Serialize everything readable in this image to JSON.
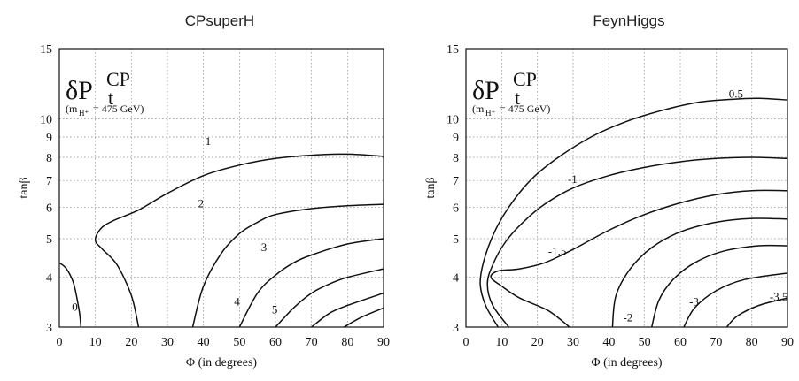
{
  "chart_data": [
    {
      "type": "line",
      "title": "CPsuperH",
      "xlabel": "Φ (in degrees)",
      "ylabel": "tanβ",
      "xlim": [
        0,
        90
      ],
      "ylim": [
        3,
        15
      ],
      "yscale": "log",
      "xticks": [
        0,
        10,
        20,
        30,
        40,
        50,
        60,
        70,
        80,
        90
      ],
      "yticks": [
        3,
        4,
        5,
        6,
        7,
        8,
        9,
        10,
        15
      ],
      "grid": true,
      "annotation": {
        "symbol": "δP",
        "sup": "CP",
        "sub": "t",
        "note_pre": "(m",
        "note_sub": "H⁺",
        "note_post": " = 475 GeV)"
      },
      "series": [
        {
          "name": "0",
          "points": [
            [
              0,
              4.35
            ],
            [
              2,
              4.2
            ],
            [
              4,
              3.85
            ],
            [
              5.5,
              3.3
            ],
            [
              6,
              3.0
            ]
          ]
        },
        {
          "name": "1",
          "points": [
            [
              22,
              3.0
            ],
            [
              20,
              3.6
            ],
            [
              16,
              4.3
            ],
            [
              12,
              4.7
            ],
            [
              10,
              4.95
            ],
            [
              11.5,
              5.3
            ],
            [
              15,
              5.55
            ],
            [
              22,
              5.9
            ],
            [
              30,
              6.5
            ],
            [
              40,
              7.2
            ],
            [
              50,
              7.65
            ],
            [
              60,
              7.95
            ],
            [
              70,
              8.1
            ],
            [
              80,
              8.15
            ],
            [
              90,
              8.05
            ]
          ]
        },
        {
          "name": "2",
          "points": [
            [
              37,
              3.0
            ],
            [
              40,
              3.8
            ],
            [
              45,
              4.6
            ],
            [
              50,
              5.15
            ],
            [
              55,
              5.5
            ],
            [
              60,
              5.75
            ],
            [
              70,
              5.95
            ],
            [
              80,
              6.05
            ],
            [
              90,
              6.1
            ]
          ]
        },
        {
          "name": "3",
          "points": [
            [
              50,
              3.0
            ],
            [
              55,
              3.65
            ],
            [
              60,
              4.05
            ],
            [
              65,
              4.35
            ],
            [
              70,
              4.55
            ],
            [
              80,
              4.85
            ],
            [
              90,
              5.0
            ]
          ]
        },
        {
          "name": "4",
          "points": [
            [
              60,
              3.0
            ],
            [
              65,
              3.35
            ],
            [
              70,
              3.65
            ],
            [
              75,
              3.85
            ],
            [
              80,
              4.0
            ],
            [
              90,
              4.2
            ]
          ]
        },
        {
          "name": "5",
          "points": [
            [
              70,
              3.0
            ],
            [
              75,
              3.25
            ],
            [
              80,
              3.4
            ],
            [
              90,
              3.65
            ]
          ]
        },
        {
          "name": "",
          "points": [
            [
              79,
              3.0
            ],
            [
              84,
              3.18
            ],
            [
              90,
              3.35
            ]
          ]
        }
      ],
      "contour_labels": [
        {
          "text": "0",
          "x": 3.5,
          "y": 3.3
        },
        {
          "text": "1",
          "x": 40.5,
          "y": 8.6
        },
        {
          "text": "2",
          "x": 38.5,
          "y": 6.0
        },
        {
          "text": "3",
          "x": 56,
          "y": 4.65
        },
        {
          "text": "4",
          "x": 48.5,
          "y": 3.4
        },
        {
          "text": "5",
          "x": 59,
          "y": 3.25
        }
      ]
    },
    {
      "type": "line",
      "title": "FeynHiggs",
      "xlabel": "Φ (in degrees)",
      "ylabel": "tanβ",
      "xlim": [
        0,
        90
      ],
      "ylim": [
        3,
        15
      ],
      "yscale": "log",
      "xticks": [
        0,
        10,
        20,
        30,
        40,
        50,
        60,
        70,
        80,
        90
      ],
      "yticks": [
        3,
        4,
        5,
        6,
        7,
        8,
        9,
        10,
        15
      ],
      "grid": true,
      "annotation": {
        "symbol": "δP",
        "sup": "CP",
        "sub": "t",
        "note_pre": "(m",
        "note_sub": "H⁺",
        "note_post": " = 475 GeV)"
      },
      "series": [
        {
          "name": "-0.5",
          "points": [
            [
              9,
              3.0
            ],
            [
              5.5,
              3.4
            ],
            [
              4,
              3.85
            ],
            [
              5,
              4.4
            ],
            [
              8,
              5.2
            ],
            [
              12,
              6.0
            ],
            [
              18,
              7.0
            ],
            [
              25,
              7.9
            ],
            [
              35,
              9.0
            ],
            [
              45,
              9.85
            ],
            [
              55,
              10.5
            ],
            [
              65,
              11.0
            ],
            [
              75,
              11.2
            ],
            [
              82,
              11.25
            ],
            [
              90,
              11.15
            ]
          ]
        },
        {
          "name": "-1",
          "points": [
            [
              12,
              3.0
            ],
            [
              7.5,
              3.4
            ],
            [
              6,
              3.85
            ],
            [
              7.5,
              4.3
            ],
            [
              11,
              4.9
            ],
            [
              16,
              5.5
            ],
            [
              22,
              6.1
            ],
            [
              30,
              6.7
            ],
            [
              40,
              7.2
            ],
            [
              50,
              7.55
            ],
            [
              60,
              7.8
            ],
            [
              70,
              7.95
            ],
            [
              80,
              8.0
            ],
            [
              90,
              7.95
            ]
          ]
        },
        {
          "name": "-1.5",
          "points": [
            [
              29,
              3.0
            ],
            [
              23,
              3.3
            ],
            [
              15,
              3.55
            ],
            [
              10,
              3.8
            ],
            [
              7,
              4.0
            ],
            [
              9,
              4.15
            ],
            [
              15,
              4.2
            ],
            [
              22,
              4.35
            ],
            [
              30,
              4.7
            ],
            [
              40,
              5.25
            ],
            [
              50,
              5.75
            ],
            [
              60,
              6.15
            ],
            [
              70,
              6.45
            ],
            [
              80,
              6.6
            ],
            [
              90,
              6.6
            ]
          ]
        },
        {
          "name": "-2",
          "points": [
            [
              41,
              3.0
            ],
            [
              42,
              3.6
            ],
            [
              46,
              4.2
            ],
            [
              52,
              4.75
            ],
            [
              60,
              5.2
            ],
            [
              70,
              5.5
            ],
            [
              80,
              5.62
            ],
            [
              90,
              5.6
            ]
          ]
        },
        {
          "name": "",
          "points": [
            [
              52,
              3.0
            ],
            [
              54,
              3.5
            ],
            [
              58,
              3.95
            ],
            [
              64,
              4.35
            ],
            [
              72,
              4.65
            ],
            [
              82,
              4.8
            ],
            [
              90,
              4.8
            ]
          ]
        },
        {
          "name": "-3",
          "points": [
            [
              61,
              3.0
            ],
            [
              64,
              3.35
            ],
            [
              70,
              3.7
            ],
            [
              78,
              3.95
            ],
            [
              90,
              4.1
            ]
          ]
        },
        {
          "name": "-3.5",
          "points": [
            [
              73,
              3.0
            ],
            [
              76,
              3.2
            ],
            [
              82,
              3.4
            ],
            [
              90,
              3.55
            ]
          ]
        }
      ],
      "contour_labels": [
        {
          "text": "-0.5",
          "x": 72.5,
          "y": 11.3
        },
        {
          "text": "-1",
          "x": 28.5,
          "y": 6.9
        },
        {
          "text": "-1.5",
          "x": 23,
          "y": 4.55
        },
        {
          "text": "-2",
          "x": 44,
          "y": 3.1
        },
        {
          "text": "-3",
          "x": 62.5,
          "y": 3.4
        },
        {
          "text": "-3.5",
          "x": 85,
          "y": 3.5
        }
      ]
    }
  ]
}
